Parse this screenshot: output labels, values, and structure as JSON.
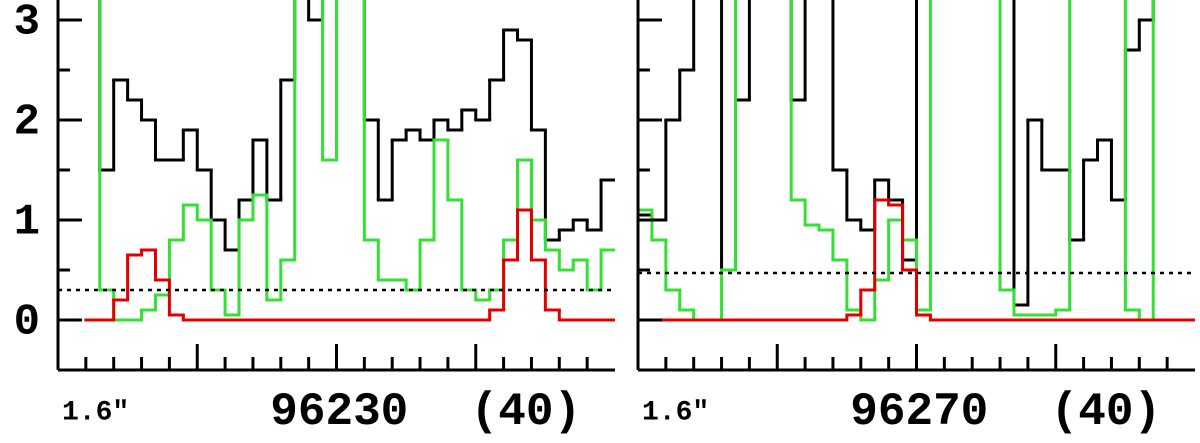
{
  "chart_data": [
    {
      "type": "step",
      "annotations": [
        "1.6″",
        "96230",
        "(40)"
      ],
      "x": [
        0,
        0.5,
        1,
        1.5,
        2,
        2.5,
        3,
        3.5,
        4,
        4.5,
        5,
        5.5,
        6,
        6.5,
        7,
        7.5,
        8,
        8.5,
        9,
        9.5,
        10,
        10.5,
        11,
        11.5,
        12,
        12.5,
        13,
        13.5,
        14,
        14.5,
        15,
        15.5,
        16,
        16.5,
        17,
        17.5,
        18,
        18.5,
        19,
        19.5
      ],
      "series": [
        {
          "color": "#000000",
          "values": [
            null,
            null,
            3.5,
            1.5,
            2.4,
            2.2,
            2.0,
            1.6,
            1.6,
            1.9,
            1.5,
            1.0,
            0.7,
            1.2,
            1.8,
            1.2,
            2.4,
            3.5,
            3.0,
            3.5,
            3.5,
            3.5,
            2.0,
            1.2,
            1.8,
            1.9,
            1.8,
            2.0,
            1.9,
            2.1,
            2.0,
            2.4,
            2.9,
            2.8,
            1.9,
            0.8,
            0.9,
            1.0,
            0.9,
            1.4
          ]
        },
        {
          "color": "#33e033",
          "values": [
            null,
            null,
            3.5,
            0.3,
            0.0,
            0.0,
            0.1,
            0.25,
            0.8,
            1.15,
            1.0,
            0.3,
            0.05,
            1.0,
            1.25,
            0.2,
            0.6,
            3.5,
            3.5,
            1.6,
            3.5,
            3.5,
            0.8,
            0.4,
            0.4,
            0.3,
            0.8,
            1.8,
            1.2,
            0.3,
            0.2,
            0.3,
            0.8,
            1.6,
            1.0,
            0.7,
            0.5,
            0.6,
            0.3,
            0.7
          ]
        },
        {
          "color": "#e00000",
          "values": [
            null,
            null,
            0,
            0,
            0.2,
            0.65,
            0.7,
            0.4,
            0.05,
            0,
            0,
            0,
            0,
            0,
            0,
            0,
            0,
            0,
            0,
            0,
            0,
            0,
            0,
            0,
            0,
            0,
            0,
            0,
            0,
            0,
            0,
            0.1,
            0.6,
            1.1,
            0.6,
            0.1,
            0,
            0,
            0,
            0
          ]
        }
      ],
      "reference_line": 0.3,
      "xlim": [
        0,
        20
      ],
      "xticks": [
        5,
        10,
        15
      ],
      "minor_xticks": [
        1,
        2,
        3,
        4,
        6,
        7,
        8,
        9,
        11,
        12,
        13,
        14,
        16,
        17,
        18,
        19
      ],
      "ylim": [
        -0.5,
        3.2
      ],
      "yticks": [
        0,
        1,
        2,
        3
      ],
      "minor_yticks": [
        -0.5,
        0.5,
        1.5,
        2.5
      ],
      "show_ytick_labels": true
    },
    {
      "type": "step",
      "annotations": [
        "1.6″",
        "96270",
        "(40)"
      ],
      "x": [
        0,
        0.5,
        1,
        1.5,
        2,
        2.5,
        3,
        3.5,
        4,
        4.5,
        5,
        5.5,
        6,
        6.5,
        7,
        7.5,
        8,
        8.5,
        9,
        9.5,
        10,
        10.5,
        11,
        11.5,
        12,
        12.5,
        13,
        13.5,
        14,
        14.5,
        15,
        15.5,
        16,
        16.5,
        17,
        17.5,
        18,
        18.5,
        19,
        19.5
      ],
      "series": [
        {
          "color": "#000000",
          "values": [
            1.05,
            1.0,
            2.0,
            2.5,
            3.5,
            3.5,
            0.5,
            2.2,
            3.5,
            3.5,
            3.5,
            2.2,
            3.5,
            3.5,
            1.5,
            1.0,
            0.9,
            1.4,
            1.2,
            0.6,
            3.5,
            3.5,
            3.5,
            3.5,
            3.5,
            3.5,
            3.5,
            0.15,
            2.0,
            1.5,
            1.5,
            0.8,
            1.6,
            1.8,
            1.2,
            2.7,
            3.0,
            3.5,
            3.5,
            3.5
          ]
        },
        {
          "color": "#33e033",
          "values": [
            1.1,
            0.8,
            0.3,
            0.1,
            0.0,
            0.0,
            0.5,
            3.5,
            3.5,
            3.5,
            3.5,
            1.2,
            0.95,
            0.9,
            0.6,
            0.1,
            0.0,
            0.4,
            1.0,
            0.8,
            0.1,
            3.5,
            3.5,
            3.5,
            3.5,
            3.5,
            0.3,
            0.05,
            0.05,
            0.05,
            0.1,
            3.5,
            3.5,
            3.5,
            3.5,
            0.1,
            0.0,
            3.5,
            3.5,
            3.5
          ]
        },
        {
          "color": "#e00000",
          "values": [
            0,
            0,
            0,
            0,
            0,
            0,
            0,
            0,
            0,
            0,
            0,
            0,
            0,
            0,
            0,
            0.05,
            0.3,
            1.2,
            1.15,
            0.5,
            0.05,
            0,
            0,
            0,
            0,
            0,
            0,
            0,
            0,
            0,
            0,
            0,
            0,
            0,
            0,
            0,
            0,
            0,
            0,
            0
          ]
        }
      ],
      "reference_line": 0.47,
      "xlim": [
        0,
        20
      ],
      "xticks": [
        5,
        10,
        15
      ],
      "minor_xticks": [
        1,
        2,
        3,
        4,
        6,
        7,
        8,
        9,
        11,
        12,
        13,
        14,
        16,
        17,
        18,
        19
      ],
      "ylim": [
        -0.5,
        3.2
      ],
      "yticks": [
        0,
        1,
        2,
        3
      ],
      "minor_yticks": [
        -0.5,
        0.5,
        1.5,
        2.5
      ],
      "show_ytick_labels": false
    }
  ]
}
